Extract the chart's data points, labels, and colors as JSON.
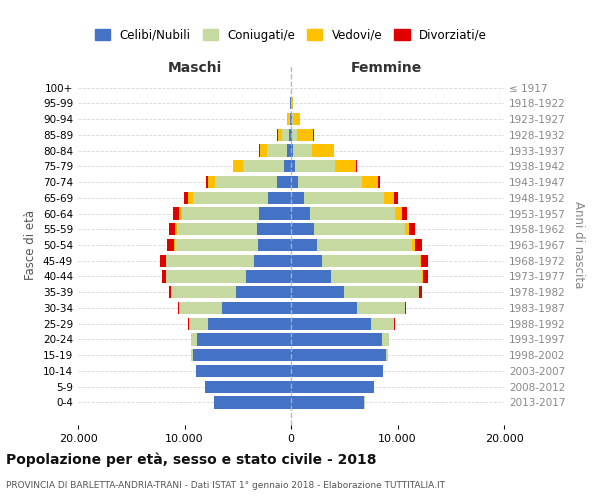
{
  "age_groups": [
    "0-4",
    "5-9",
    "10-14",
    "15-19",
    "20-24",
    "25-29",
    "30-34",
    "35-39",
    "40-44",
    "45-49",
    "50-54",
    "55-59",
    "60-64",
    "65-69",
    "70-74",
    "75-79",
    "80-84",
    "85-89",
    "90-94",
    "95-99",
    "100+"
  ],
  "birth_years": [
    "2013-2017",
    "2008-2012",
    "2003-2007",
    "1998-2002",
    "1993-1997",
    "1988-1992",
    "1983-1987",
    "1978-1982",
    "1973-1977",
    "1968-1972",
    "1963-1967",
    "1958-1962",
    "1953-1957",
    "1948-1952",
    "1943-1947",
    "1938-1942",
    "1933-1937",
    "1928-1932",
    "1923-1927",
    "1918-1922",
    "≤ 1917"
  ],
  "colors": {
    "celibi": "#4472c4",
    "coniugati": "#c6d9a0",
    "vedovi": "#ffc000",
    "divorziati": "#e00000"
  },
  "maschi": {
    "celibi": [
      7200,
      8100,
      8900,
      9200,
      8800,
      7800,
      6500,
      5200,
      4200,
      3500,
      3100,
      3200,
      3000,
      2200,
      1300,
      700,
      350,
      150,
      80,
      50,
      30
    ],
    "coniugati": [
      5,
      10,
      30,
      150,
      600,
      1800,
      4000,
      6000,
      7500,
      8200,
      7800,
      7500,
      7200,
      7000,
      5800,
      3800,
      1900,
      700,
      150,
      30,
      10
    ],
    "vedovi": [
      0,
      0,
      0,
      5,
      5,
      10,
      20,
      30,
      50,
      80,
      120,
      200,
      350,
      500,
      700,
      900,
      700,
      400,
      150,
      30,
      5
    ],
    "divorziati": [
      0,
      0,
      0,
      5,
      15,
      40,
      100,
      200,
      350,
      550,
      600,
      550,
      500,
      350,
      200,
      50,
      30,
      20,
      10,
      5,
      0
    ]
  },
  "femmine": {
    "celibi": [
      6900,
      7800,
      8600,
      8900,
      8500,
      7500,
      6200,
      5000,
      3800,
      2900,
      2400,
      2200,
      1800,
      1200,
      700,
      400,
      200,
      100,
      50,
      30,
      20
    ],
    "coniugati": [
      5,
      10,
      40,
      200,
      700,
      2200,
      4500,
      7000,
      8500,
      9200,
      9000,
      8500,
      8000,
      7500,
      6000,
      3700,
      1800,
      500,
      100,
      20,
      5
    ],
    "vedovi": [
      0,
      0,
      0,
      5,
      5,
      10,
      20,
      40,
      70,
      120,
      200,
      350,
      600,
      1000,
      1500,
      2000,
      2000,
      1500,
      700,
      150,
      20
    ],
    "divorziati": [
      0,
      0,
      0,
      5,
      15,
      40,
      100,
      250,
      450,
      650,
      700,
      600,
      500,
      350,
      200,
      80,
      50,
      20,
      10,
      5,
      0
    ]
  },
  "title": "Popolazione per età, sesso e stato civile - 2018",
  "subtitle": "PROVINCIA DI BARLETTA-ANDRIA-TRANI - Dati ISTAT 1° gennaio 2018 - Elaborazione TUTTITALIA.IT",
  "xlabel_left": "Maschi",
  "xlabel_right": "Femmine",
  "ylabel_left": "Fasce di età",
  "ylabel_right": "Anni di nascita",
  "xlim": 20000,
  "background_color": "#ffffff",
  "grid_color": "#cccccc"
}
